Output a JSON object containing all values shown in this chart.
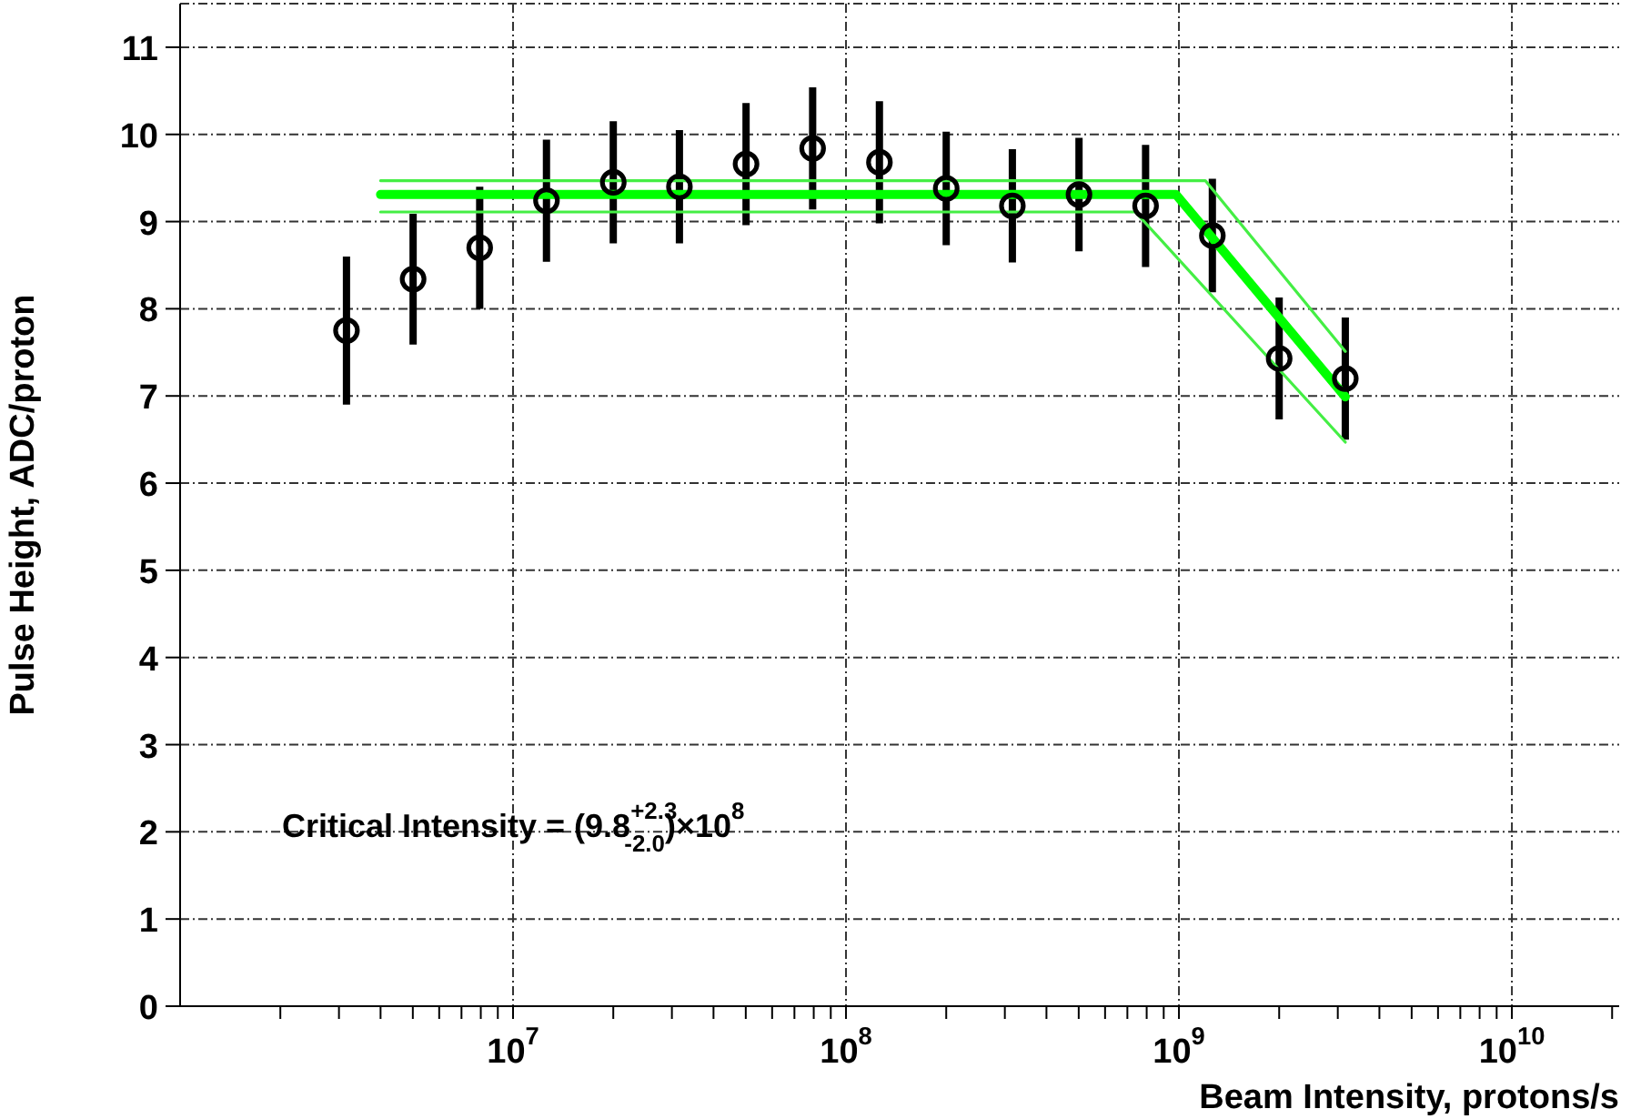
{
  "chart_data": {
    "type": "scatter",
    "xlabel": "Beam Intensity, protons/s",
    "ylabel": "Pulse Height, ADC/proton",
    "annotations": [
      "Critical Intensity = (9.8$^{+2.3}$$_{-2.0}$)×10$^{8}$"
    ],
    "log": "x",
    "grid": true,
    "marker": "circle",
    "line_style": "solid",
    "xlim": [
      1000000,
      21000000000
    ],
    "xticks": [
      {
        "value": 2000000,
        "label": null
      },
      {
        "value": 3000000,
        "label": null
      },
      {
        "value": 4000000,
        "label": null
      },
      {
        "value": 5000000,
        "label": null
      },
      {
        "value": 6000000,
        "label": null
      },
      {
        "value": 7000000,
        "label": null
      },
      {
        "value": 8000000,
        "label": null
      },
      {
        "value": 9000000,
        "label": null
      },
      {
        "value": 10000000,
        "label": "10$^{7}$"
      },
      {
        "value": 20000000,
        "label": null
      },
      {
        "value": 30000000,
        "label": null
      },
      {
        "value": 40000000,
        "label": null
      },
      {
        "value": 50000000,
        "label": null
      },
      {
        "value": 60000000,
        "label": null
      },
      {
        "value": 70000000,
        "label": null
      },
      {
        "value": 80000000,
        "label": null
      },
      {
        "value": 90000000,
        "label": null
      },
      {
        "value": 100000000,
        "label": "10$^{8}$"
      },
      {
        "value": 200000000,
        "label": null
      },
      {
        "value": 300000000,
        "label": null
      },
      {
        "value": 400000000,
        "label": null
      },
      {
        "value": 500000000,
        "label": null
      },
      {
        "value": 600000000,
        "label": null
      },
      {
        "value": 700000000,
        "label": null
      },
      {
        "value": 800000000,
        "label": null
      },
      {
        "value": 900000000,
        "label": null
      },
      {
        "value": 1000000000,
        "label": "10$^{9}$"
      },
      {
        "value": 2000000000,
        "label": null
      },
      {
        "value": 3000000000,
        "label": null
      },
      {
        "value": 4000000000,
        "label": null
      },
      {
        "value": 5000000000,
        "label": null
      },
      {
        "value": 6000000000,
        "label": null
      },
      {
        "value": 7000000000,
        "label": null
      },
      {
        "value": 8000000000,
        "label": null
      },
      {
        "value": 9000000000,
        "label": null
      },
      {
        "value": 10000000000,
        "label": "10$^{10}$"
      },
      {
        "value": 20000000000,
        "label": null
      }
    ],
    "ylim": [
      0,
      11.5
    ],
    "yticks": [
      0,
      1,
      2,
      3,
      4,
      5,
      6,
      7,
      8,
      9,
      10,
      11
    ],
    "series": [
      {
        "color": "#000000",
        "x": [
          3160000,
          5010000,
          7940000,
          12600000,
          20000000,
          31600000,
          50100000,
          79400000,
          126000000,
          200000000,
          316000000,
          501000000,
          794000000,
          1260000000,
          2000000000,
          3160000000
        ],
        "values": [
          7.75,
          8.34,
          8.7,
          9.24,
          9.45,
          9.4,
          9.66,
          9.84,
          9.68,
          9.38,
          9.18,
          9.31,
          9.18,
          8.84,
          7.43,
          7.2
        ],
        "errors": [
          0.85,
          0.75,
          0.7,
          0.7,
          0.7,
          0.65,
          0.7,
          0.7,
          0.7,
          0.65,
          0.65,
          0.65,
          0.7,
          0.65,
          0.7,
          0.7
        ]
      },
      {
        "type": "line",
        "marker": "none",
        "color": "#00ff00",
        "x": [
          4000000,
          980000000,
          3160000000
        ],
        "values": [
          9.31,
          9.31,
          6.99
        ]
      },
      {
        "type": "line",
        "marker": "none",
        "color": "#44ee44",
        "x": [
          4000000,
          1200000000,
          3160000000
        ],
        "values": [
          9.47,
          9.47,
          7.51
        ]
      },
      {
        "type": "line",
        "marker": "none",
        "color": "#44ee44",
        "x": [
          4000000,
          740000000,
          3160000000
        ],
        "values": [
          9.11,
          9.11,
          6.47
        ]
      }
    ]
  }
}
